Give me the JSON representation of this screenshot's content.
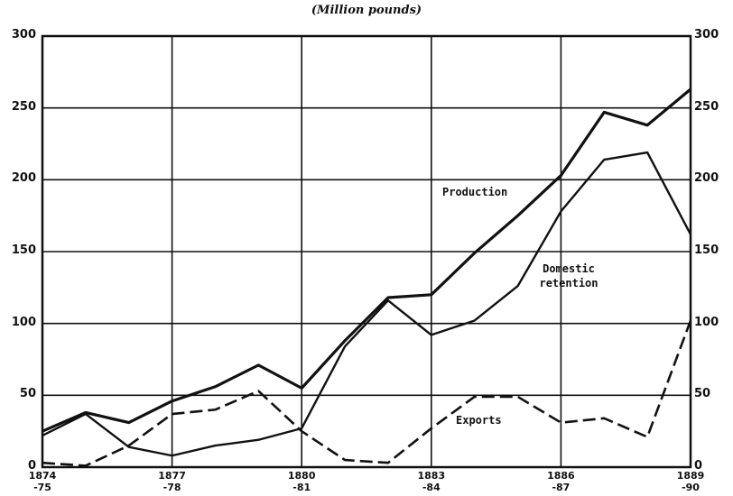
{
  "chart_data": {
    "type": "line",
    "title": "(Million pounds)",
    "categories": [
      "1874\n-75",
      null,
      null,
      "1877\n-78",
      null,
      null,
      "1880\n-81",
      null,
      null,
      "1883\n-84",
      null,
      null,
      "1886\n-87",
      null,
      null,
      "1889\n-90"
    ],
    "series": [
      {
        "name": "Production",
        "color": "#111111",
        "width": 3.2,
        "dash": false,
        "values": [
          25,
          38,
          31,
          46,
          56,
          71,
          55,
          88,
          118,
          120,
          149,
          175,
          203,
          247,
          238,
          263
        ]
      },
      {
        "name": "Domestic\nretention",
        "color": "#111111",
        "width": 2.4,
        "dash": false,
        "values": [
          22,
          37,
          14,
          8,
          15,
          19,
          27,
          84,
          116,
          92,
          102,
          126,
          178,
          214,
          219,
          162
        ]
      },
      {
        "name": "Exports",
        "color": "#111111",
        "width": 2.6,
        "dash": true,
        "values": [
          3,
          1,
          15,
          37,
          40,
          53,
          25,
          5,
          3,
          27,
          49,
          49,
          31,
          34,
          21,
          102
        ]
      }
    ],
    "ylim": [
      0,
      300
    ],
    "yticks": [
      0,
      50,
      100,
      150,
      200,
      250,
      300
    ],
    "grid": true
  }
}
